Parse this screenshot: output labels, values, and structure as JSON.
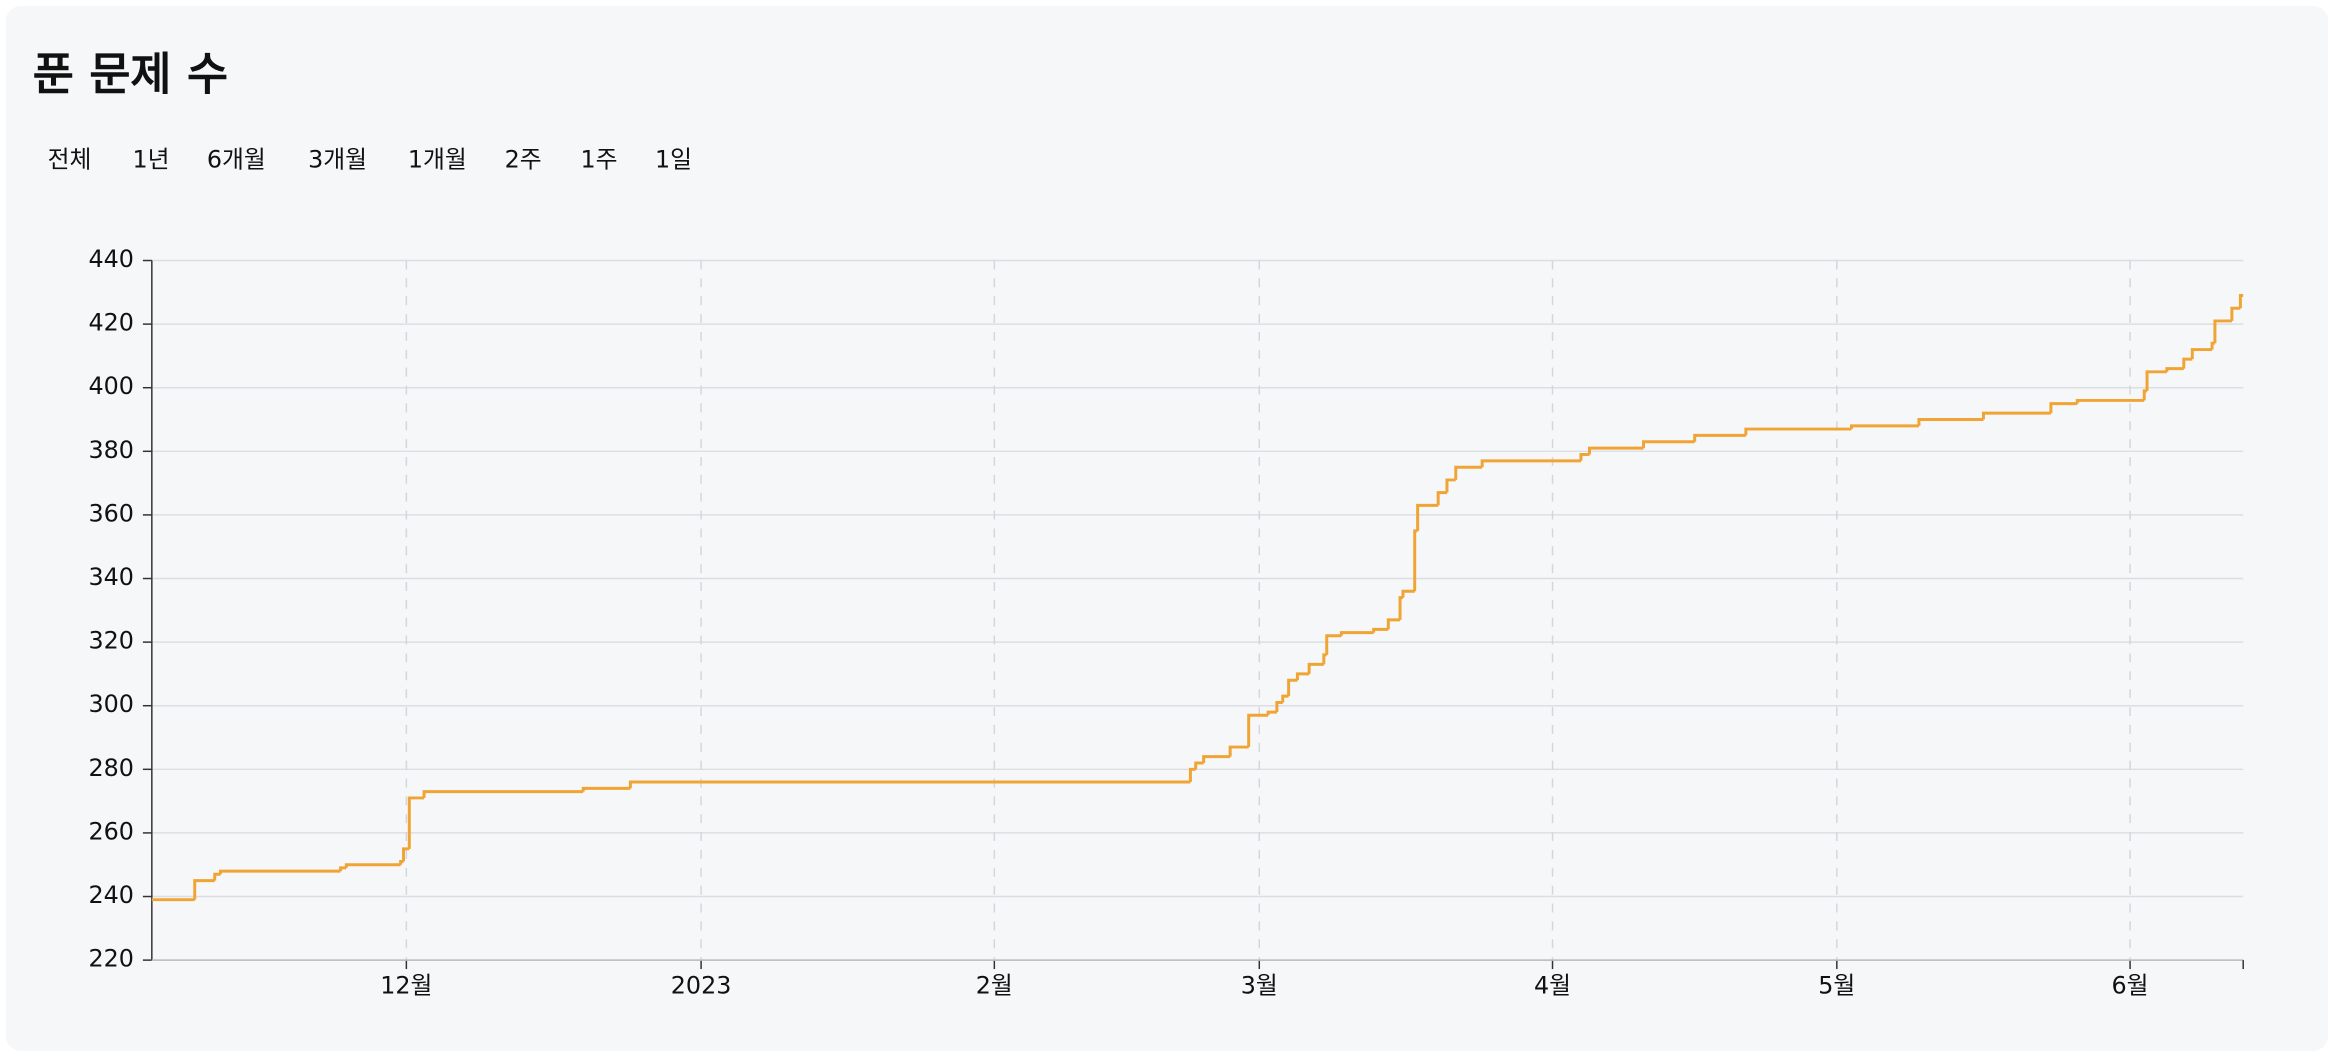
{
  "chart_data": {
    "type": "line",
    "step": "after",
    "title": "푼 문제 수",
    "ranges": [
      "전체",
      "1년",
      "6개월",
      "3개월",
      "1개월",
      "2주",
      "1주",
      "1일"
    ],
    "color": "#f0a434",
    "grid": true,
    "ylim": [
      220,
      440
    ],
    "yticks": [
      220,
      240,
      260,
      280,
      300,
      320,
      340,
      360,
      380,
      400,
      420,
      440
    ],
    "xlim": [
      11.11,
      18.4
    ],
    "xticks": [
      {
        "value": 12,
        "label": "12월"
      },
      {
        "value": 13,
        "label": "2023"
      },
      {
        "value": 14,
        "label": "2월"
      },
      {
        "value": 15,
        "label": "3월"
      },
      {
        "value": 16,
        "label": "4월"
      },
      {
        "value": 17,
        "label": "5월"
      },
      {
        "value": 18,
        "label": "6월"
      }
    ],
    "x": [
      11.11,
      11.26,
      11.33,
      11.35,
      11.77,
      11.79,
      11.98,
      11.99,
      12.01,
      12.06,
      12.6,
      12.76,
      14.74,
      14.76,
      14.79,
      14.89,
      14.96,
      15.03,
      15.06,
      15.08,
      15.1,
      15.13,
      15.17,
      15.22,
      15.23,
      15.28,
      15.39,
      15.44,
      15.48,
      15.49,
      15.53,
      15.54,
      15.61,
      15.64,
      15.67,
      15.76,
      16.1,
      16.13,
      16.32,
      16.5,
      16.68,
      17.05,
      17.28,
      17.5,
      17.73,
      17.82,
      18.05,
      18.06,
      18.13,
      18.19,
      18.22,
      18.29,
      18.3,
      18.36,
      18.39
    ],
    "values": [
      239,
      245,
      247,
      248,
      249,
      250,
      251,
      255,
      271,
      273,
      274,
      276,
      280,
      282,
      284,
      287,
      297,
      298,
      301,
      303,
      308,
      310,
      313,
      316,
      322,
      323,
      324,
      327,
      334,
      336,
      355,
      363,
      367,
      371,
      375,
      377,
      379,
      381,
      383,
      385,
      387,
      388,
      390,
      392,
      395,
      396,
      399,
      405,
      406,
      409,
      412,
      414,
      421,
      425,
      429
    ]
  }
}
